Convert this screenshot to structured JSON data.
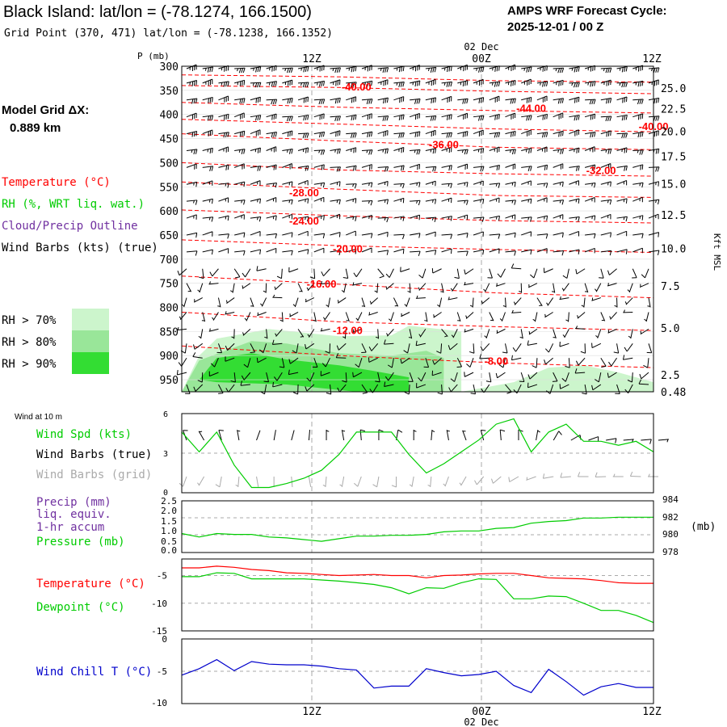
{
  "header": {
    "title": "Black Island:  lat/lon = (-78.1274, 166.1500)",
    "grid_point": "Grid Point (370, 471) lat/lon = (-78.1238, 166.1352)",
    "forecast_cycle_label": "AMPS WRF Forecast Cycle:",
    "forecast_cycle": "2025-12-01 / 00  Z"
  },
  "sidebar": {
    "model_grid_label": "Model Grid ΔX:",
    "model_grid_value": "0.889 km",
    "legend_temperature": "Temperature (°C)",
    "legend_rh": "RH (%, WRT liq. wat.)",
    "legend_cloud": "Cloud/Precip Outline",
    "legend_wind": "Wind Barbs (kts) (true)",
    "rh_bins": [
      {
        "label": "RH > 70%",
        "color": "#ccf5cc"
      },
      {
        "label": "RH > 80%",
        "color": "#99e699"
      },
      {
        "label": "RH > 90%",
        "color": "#33dd33"
      }
    ]
  },
  "time_axis": {
    "ticks": [
      "12Z",
      "00Z",
      "12Z"
    ],
    "date_label": "02 Dec"
  },
  "colors": {
    "temperature": "#ff0000",
    "green": "#00cc00",
    "purple": "#7030a0",
    "wind_chill": "#0000cc",
    "grey": "#aaaaaa",
    "grid": "#aaaaaa"
  },
  "chart_data": [
    {
      "type": "contour",
      "name": "cross-section",
      "ylabel": "P (mb)",
      "y2label": "Kft MSL",
      "pressure_levels": [
        300,
        350,
        400,
        450,
        500,
        550,
        600,
        650,
        700,
        750,
        800,
        850,
        900,
        950
      ],
      "ylim": [
        300,
        975
      ],
      "height_ticks": [
        {
          "label": "25.0",
          "p": 345
        },
        {
          "label": "22.5",
          "p": 388
        },
        {
          "label": "20.0",
          "p": 435
        },
        {
          "label": "17.5",
          "p": 487
        },
        {
          "label": "15.0",
          "p": 544
        },
        {
          "label": "12.5",
          "p": 608
        },
        {
          "label": "10.0",
          "p": 678
        },
        {
          "label": "7.5",
          "p": 756
        },
        {
          "label": "5.0",
          "p": 843
        },
        {
          "label": "2.5",
          "p": 940
        },
        {
          "label": "0.48",
          "p": 975
        }
      ],
      "temperature_labels": [
        {
          "label": "-40.00",
          "x": 10,
          "p": 350
        },
        {
          "label": "-44.00",
          "x": 20,
          "p": 395
        },
        {
          "label": "-40.00",
          "x": 27,
          "p": 432
        },
        {
          "label": "-36.00",
          "x": 15,
          "p": 470
        },
        {
          "label": "-32.00",
          "x": 24,
          "p": 524
        },
        {
          "label": "-28.00",
          "x": 7,
          "p": 570
        },
        {
          "label": "-24.00",
          "x": 7,
          "p": 628
        },
        {
          "label": "-20.00",
          "x": 9.5,
          "p": 686
        },
        {
          "label": "-16.00",
          "x": 8,
          "p": 759
        },
        {
          "label": "-12.00",
          "x": 9.5,
          "p": 855
        },
        {
          "label": "-8.00",
          "x": 18,
          "p": 919
        }
      ],
      "temperature_isotherms_p": [
        [
          318,
          322,
          330,
          333
        ],
        [
          340,
          344,
          352,
          357
        ],
        [
          375,
          385,
          392,
          397
        ],
        [
          410,
          420,
          430,
          436
        ],
        [
          440,
          455,
          468,
          473
        ],
        [
          500,
          515,
          523,
          528
        ],
        [
          540,
          555,
          568,
          572
        ],
        [
          598,
          610,
          620,
          625
        ],
        [
          660,
          672,
          680,
          686
        ],
        [
          735,
          752,
          770,
          780
        ],
        [
          810,
          830,
          840,
          848
        ],
        [
          880,
          900,
          915,
          925
        ]
      ],
      "rh_regions": [
        {
          "class": "RH > 70%",
          "x": [
            0,
            1,
            2,
            5,
            9,
            12,
            13,
            16,
            16,
            19,
            21,
            23,
            25,
            27,
            27
          ],
          "p": [
            975,
            900,
            865,
            845,
            860,
            858,
            838,
            850,
            975,
            955,
            925,
            920,
            935,
            955,
            975
          ]
        },
        {
          "class": "RH > 80%",
          "x": [
            0,
            1,
            4,
            6,
            9,
            12,
            14,
            15,
            15
          ],
          "p": [
            975,
            910,
            870,
            875,
            895,
            900,
            890,
            905,
            975
          ]
        },
        {
          "class": "RH > 90%",
          "x": [
            1,
            2,
            4,
            6,
            9,
            11,
            13,
            13,
            10,
            6,
            2
          ],
          "p": [
            950,
            905,
            895,
            908,
            920,
            932,
            945,
            975,
            975,
            960,
            955
          ]
        }
      ],
      "wind_row_levels": [
        305,
        335,
        370,
        405,
        440,
        475,
        510,
        545,
        580,
        615,
        650,
        685,
        720,
        750,
        780,
        810,
        845,
        875,
        905,
        935,
        960
      ],
      "wind_speeds_kts": [
        35,
        35,
        30,
        30,
        30,
        25,
        20,
        15,
        15,
        15,
        10,
        10,
        10,
        5,
        5,
        5,
        5,
        10,
        10,
        10,
        10
      ]
    },
    {
      "type": "line",
      "name": "wind-10m",
      "title": "Wind at 10 m",
      "series_label": "Wind Spd (kts)",
      "barbs_true_label": "Wind Barbs (true)",
      "barbs_grid_label": "Wind Barbs (grid)",
      "yticks": [
        "6",
        "3",
        "0"
      ],
      "ylim": [
        0,
        6
      ],
      "x": [
        0,
        1,
        2,
        3,
        4,
        5,
        6,
        7,
        8,
        9,
        10,
        11,
        12,
        13,
        14,
        15,
        16,
        17,
        18,
        19,
        20,
        21,
        22,
        23,
        24,
        25,
        26,
        27
      ],
      "values": [
        4.6,
        3.1,
        4.6,
        2.1,
        0.4,
        0.4,
        0.7,
        1.1,
        1.7,
        2.9,
        4.6,
        4.6,
        4.6,
        2.9,
        1.5,
        2.2,
        3.1,
        4.0,
        5.2,
        5.6,
        3.1,
        4.6,
        5.2,
        3.9,
        3.9,
        3.6,
        3.9,
        3.1
      ]
    },
    {
      "type": "line",
      "name": "precip-pressure",
      "precip_label": "Precip (mm)",
      "precip_label2": "liq. equiv.",
      "precip_label3": "1-hr accum",
      "pressure_label": "Pressure (mb)",
      "y2unit": "(mb)",
      "yticks": [
        "2.5",
        "2.0",
        "1.5",
        "1.0",
        "0.5",
        "0.0"
      ],
      "y2ticks": [
        "984",
        "982",
        "980",
        "978"
      ],
      "ylim": [
        0,
        2.5
      ],
      "y2lim": [
        978,
        984
      ],
      "x": [
        0,
        1,
        2,
        3,
        4,
        5,
        6,
        7,
        8,
        9,
        10,
        11,
        12,
        13,
        14,
        15,
        16,
        17,
        18,
        19,
        20,
        21,
        22,
        23,
        24,
        25,
        26,
        27
      ],
      "pressure": [
        980.2,
        979.8,
        980.2,
        980.1,
        980.1,
        979.8,
        979.7,
        979.5,
        979.3,
        979.6,
        979.9,
        979.9,
        980.0,
        980.0,
        980.1,
        980.4,
        980.5,
        980.5,
        980.8,
        980.9,
        981.4,
        981.6,
        981.7,
        982.0,
        982.0,
        982.1,
        982.1,
        982.1
      ],
      "precip": [
        0,
        0,
        0,
        0,
        0,
        0,
        0,
        0,
        0,
        0,
        0,
        0,
        0,
        0,
        0,
        0,
        0,
        0,
        0,
        0,
        0,
        0,
        0,
        0,
        0,
        0,
        0,
        0
      ]
    },
    {
      "type": "line",
      "name": "temperature-dewpoint",
      "series": [
        {
          "name": "Temperature (°C)",
          "color": "#ff0000",
          "values": [
            -3.6,
            -3.6,
            -3.3,
            -3.5,
            -3.9,
            -4.1,
            -4.5,
            -4.6,
            -4.8,
            -5.0,
            -4.9,
            -4.8,
            -5.0,
            -5.0,
            -5.4,
            -5.0,
            -4.9,
            -4.7,
            -4.6,
            -4.6,
            -5.0,
            -5.4,
            -5.5,
            -5.6,
            -5.9,
            -6.3,
            -6.4,
            -6.4
          ]
        },
        {
          "name": "Dewpoint (°C)",
          "color": "#00cc00",
          "values": [
            -5.2,
            -5.2,
            -4.5,
            -4.6,
            -5.6,
            -5.6,
            -5.6,
            -5.6,
            -5.8,
            -6.0,
            -6.3,
            -6.6,
            -7.2,
            -8.3,
            -7.2,
            -7.3,
            -6.3,
            -5.6,
            -5.7,
            -9.2,
            -9.2,
            -8.7,
            -8.8,
            -10.0,
            -11.3,
            -11.3,
            -12.2,
            -13.5
          ]
        }
      ],
      "yticks": [
        "-5",
        "-10",
        "-15"
      ],
      "ylim": [
        -15,
        -2
      ]
    },
    {
      "type": "line",
      "name": "wind-chill",
      "series_label": "Wind Chill T (°C)",
      "yticks": [
        "0",
        "-5",
        "-10"
      ],
      "ylim": [
        -10,
        0
      ],
      "x": [
        0,
        1,
        2,
        3,
        4,
        5,
        6,
        7,
        8,
        9,
        10,
        11,
        12,
        13,
        14,
        15,
        16,
        17,
        18,
        19,
        20,
        21,
        22,
        23,
        24,
        25,
        26,
        27
      ],
      "values": [
        -5.6,
        -4.6,
        -3.2,
        -4.9,
        -3.5,
        -3.9,
        -4.0,
        -4.0,
        -4.2,
        -4.6,
        -4.8,
        -7.6,
        -7.3,
        -7.3,
        -4.6,
        -5.2,
        -5.7,
        -5.5,
        -5.0,
        -7.2,
        -8.3,
        -4.7,
        -6.6,
        -8.7,
        -7.4,
        -6.9,
        -7.5,
        -7.5
      ]
    }
  ]
}
